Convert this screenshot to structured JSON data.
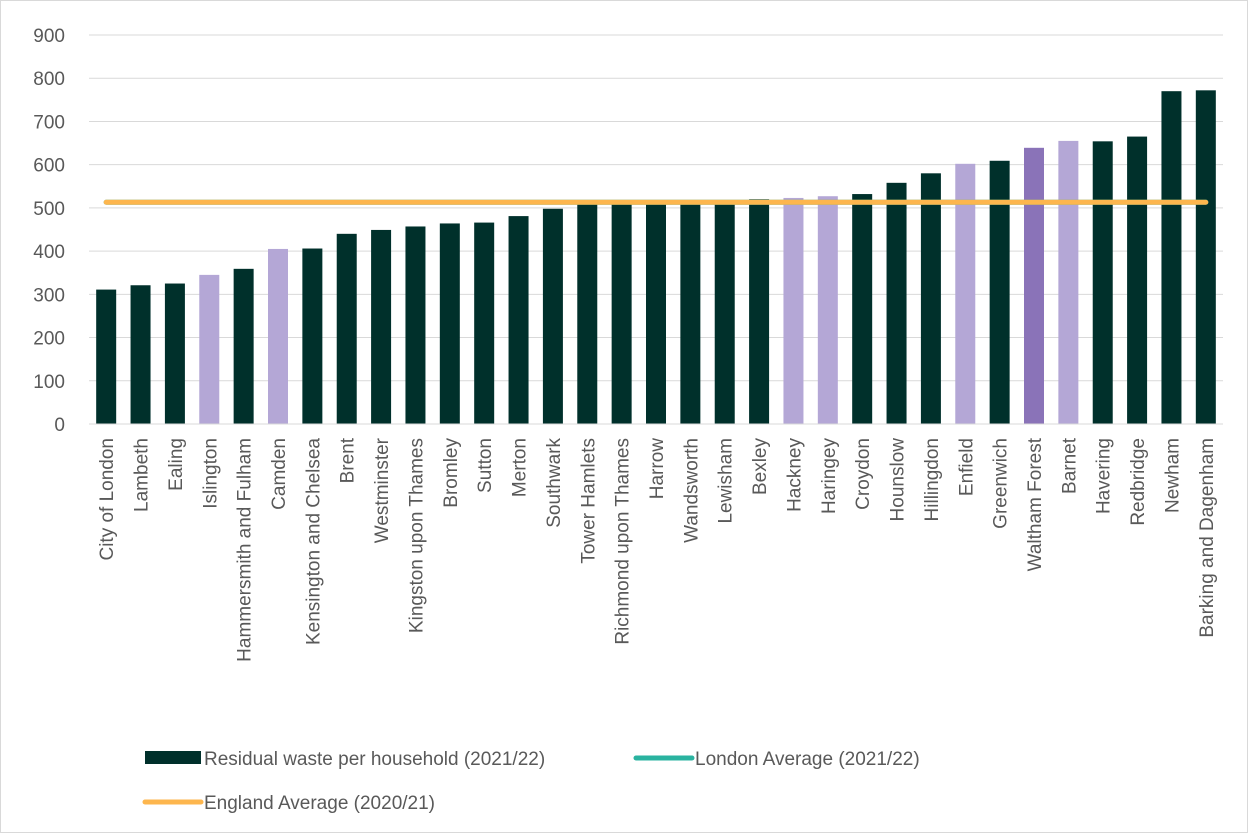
{
  "chart_data": {
    "type": "bar",
    "title": "",
    "xlabel": "",
    "ylabel": "",
    "ylim": [
      0,
      900
    ],
    "yticks": [
      0,
      100,
      200,
      300,
      400,
      500,
      600,
      700,
      800,
      900
    ],
    "grid": true,
    "legend_position": "bottom",
    "categories": [
      "City of London",
      "Lambeth",
      "Ealing",
      "Islington",
      "Hammersmith and Fulham",
      "Camden",
      "Kensington and Chelsea",
      "Brent",
      "Westminster",
      "Kingston upon Thames",
      "Bromley",
      "Sutton",
      "Merton",
      "Southwark",
      "Tower Hamlets",
      "Richmond upon Thames",
      "Harrow",
      "Wandsworth",
      "Lewisham",
      "Bexley",
      "Hackney",
      "Haringey",
      "Croydon",
      "Hounslow",
      "Hillingdon",
      "Enfield",
      "Greenwich",
      "Waltham Forest",
      "Barnet",
      "Havering",
      "Redbridge",
      "Newham",
      "Barking and Dagenham"
    ],
    "series": [
      {
        "name": "Residual waste per household (2021/22)",
        "kind": "bar",
        "color": "#00302b",
        "values": [
          311,
          321,
          325,
          345,
          359,
          405,
          406,
          440,
          449,
          457,
          464,
          466,
          481,
          498,
          510,
          511,
          512,
          513,
          514,
          520,
          523,
          527,
          532,
          558,
          580,
          602,
          609,
          639,
          655,
          654,
          665,
          770,
          772
        ]
      },
      {
        "name": "London Average (2021/22)",
        "kind": "line",
        "color": "#2ab3a0",
        "value": 513
      },
      {
        "name": "England Average (2020/21)",
        "kind": "line",
        "color": "#fdb64e",
        "value": 513
      }
    ],
    "bar_colors": {
      "default": "#00302b",
      "highlight_light": "#b4a7d6",
      "highlight_dark": "#8a73b8"
    },
    "bar_color_keys": [
      "default",
      "default",
      "default",
      "highlight_light",
      "default",
      "highlight_light",
      "default",
      "default",
      "default",
      "default",
      "default",
      "default",
      "default",
      "default",
      "default",
      "default",
      "default",
      "default",
      "default",
      "default",
      "highlight_light",
      "highlight_light",
      "default",
      "default",
      "default",
      "highlight_light",
      "default",
      "highlight_dark",
      "highlight_light",
      "default",
      "default",
      "default",
      "default"
    ]
  }
}
